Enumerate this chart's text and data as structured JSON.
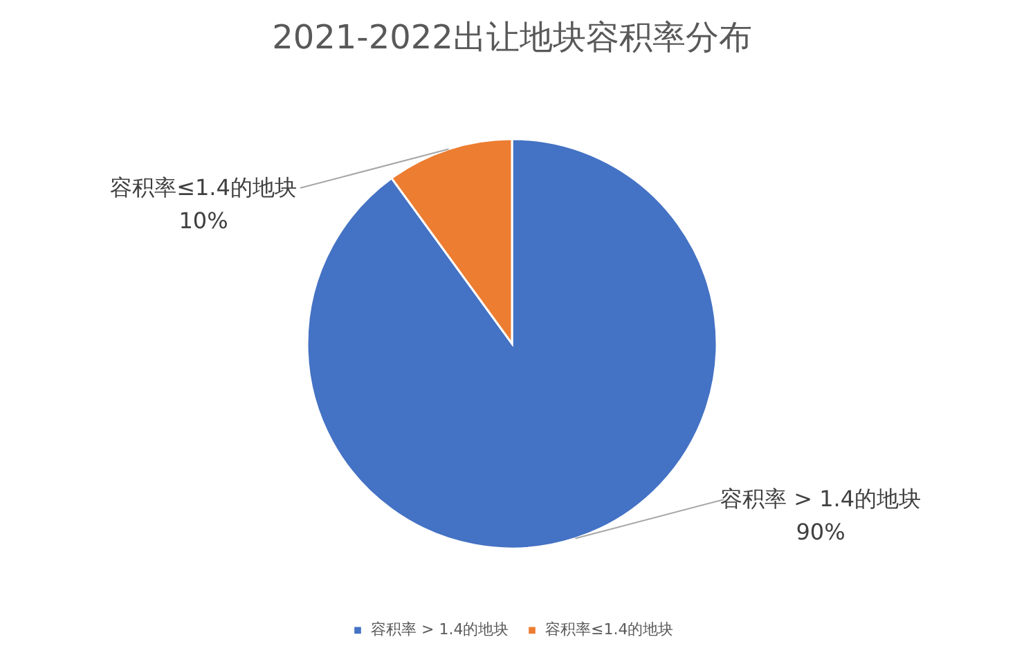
{
  "chart_data": {
    "type": "pie",
    "title": "2021-2022出让地块容积率分布",
    "categories": [
      "容积率 > 1.4的地块",
      "容积率≤1.4的地块"
    ],
    "values": [
      90,
      10
    ],
    "colors": [
      "#4472c4",
      "#ed7d31"
    ],
    "value_labels": [
      "90%",
      "10%"
    ],
    "legend": "bottom"
  }
}
